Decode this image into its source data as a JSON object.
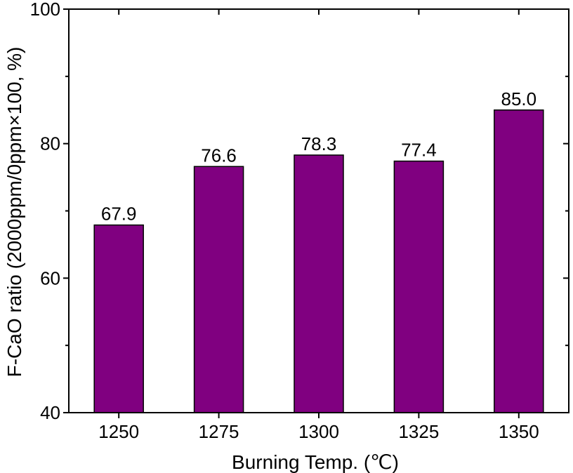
{
  "chart_data": {
    "type": "bar",
    "categories": [
      "1250",
      "1275",
      "1300",
      "1325",
      "1350"
    ],
    "values": [
      67.9,
      76.6,
      78.3,
      77.4,
      85.0
    ],
    "data_labels": [
      "67.9",
      "76.6",
      "78.3",
      "77.4",
      "85.0"
    ],
    "title": "",
    "xlabel": "Burning Temp. (℃)",
    "ylabel": "F-CaO ratio (2000ppm/0ppm×100, %)",
    "ylim": [
      40,
      100
    ],
    "yticks": [
      40,
      60,
      80,
      100
    ],
    "ytick_labels": [
      "40",
      "60",
      "80",
      "100"
    ],
    "grid": false,
    "legend": "none",
    "bar_color": "#800080"
  }
}
